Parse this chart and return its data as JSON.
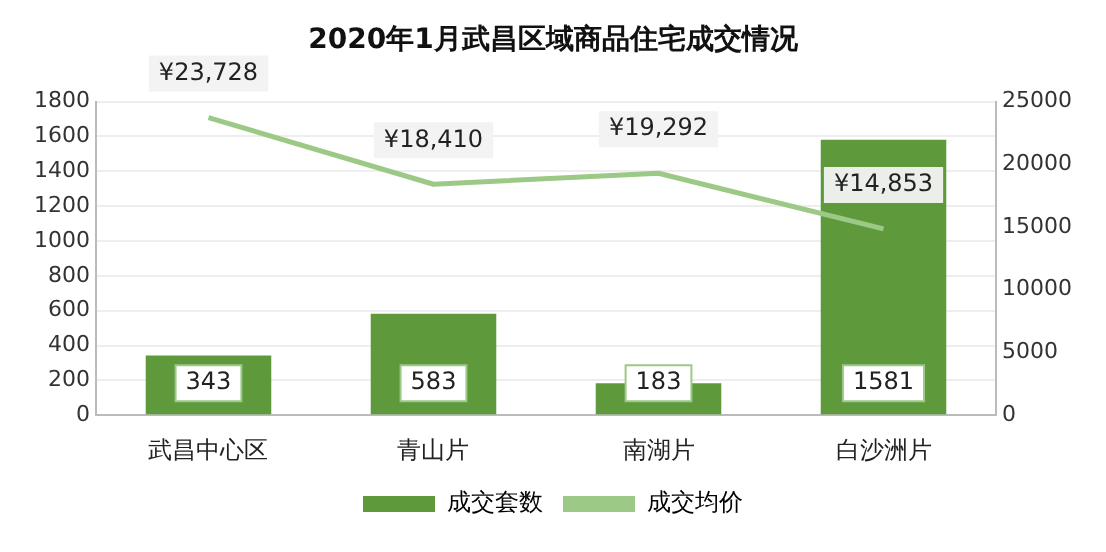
{
  "chart_data": {
    "type": "bar",
    "title": "2020年1月武昌区域商品住宅成交情况",
    "categories": [
      "武昌中心区",
      "青山片",
      "南湖片",
      "白沙洲片"
    ],
    "series": [
      {
        "name": "成交套数",
        "color": "#5e9a3c",
        "values": [
          343,
          583,
          183,
          1581
        ],
        "value_labels": [
          "343",
          "583",
          "183",
          "1581"
        ]
      },
      {
        "name": "成交均价",
        "type": "line",
        "axis": "y2",
        "color": "#9dc987",
        "values": [
          23728,
          18410,
          19292,
          14853
        ],
        "value_labels": [
          "¥23,728",
          "¥18,410",
          "¥19,292",
          "¥14,853"
        ]
      }
    ],
    "ylim": [
      0,
      1800
    ],
    "yticks": [
      0,
      200,
      400,
      600,
      800,
      1000,
      1200,
      1400,
      1600,
      1800
    ],
    "y2lim": [
      0,
      25000
    ],
    "y2ticks": [
      0,
      5000,
      10000,
      15000,
      20000,
      25000
    ],
    "grid": "y",
    "legend": "bottom",
    "marker": "none"
  }
}
